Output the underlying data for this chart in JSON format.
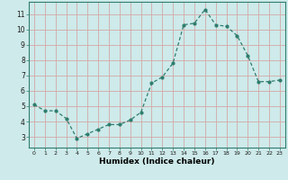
{
  "x": [
    0,
    1,
    2,
    3,
    4,
    5,
    6,
    7,
    8,
    9,
    10,
    11,
    12,
    13,
    14,
    15,
    16,
    17,
    18,
    19,
    20,
    21,
    22,
    23
  ],
  "y": [
    5.1,
    4.7,
    4.7,
    4.2,
    2.9,
    3.2,
    3.5,
    3.8,
    3.8,
    4.1,
    4.6,
    6.5,
    6.9,
    7.8,
    10.3,
    10.4,
    11.3,
    10.3,
    10.2,
    9.6,
    8.3,
    6.6,
    6.6,
    6.7
  ],
  "xlabel": "Humidex (Indice chaleur)",
  "line_color": "#2e7d6e",
  "bg_color": "#ceeaea",
  "grid_color": "#b8d4d4",
  "xlim": [
    -0.5,
    23.5
  ],
  "ylim": [
    2.3,
    11.8
  ],
  "yticks": [
    3,
    4,
    5,
    6,
    7,
    8,
    9,
    10,
    11
  ],
  "xticks": [
    0,
    1,
    2,
    3,
    4,
    5,
    6,
    7,
    8,
    9,
    10,
    11,
    12,
    13,
    14,
    15,
    16,
    17,
    18,
    19,
    20,
    21,
    22,
    23
  ]
}
